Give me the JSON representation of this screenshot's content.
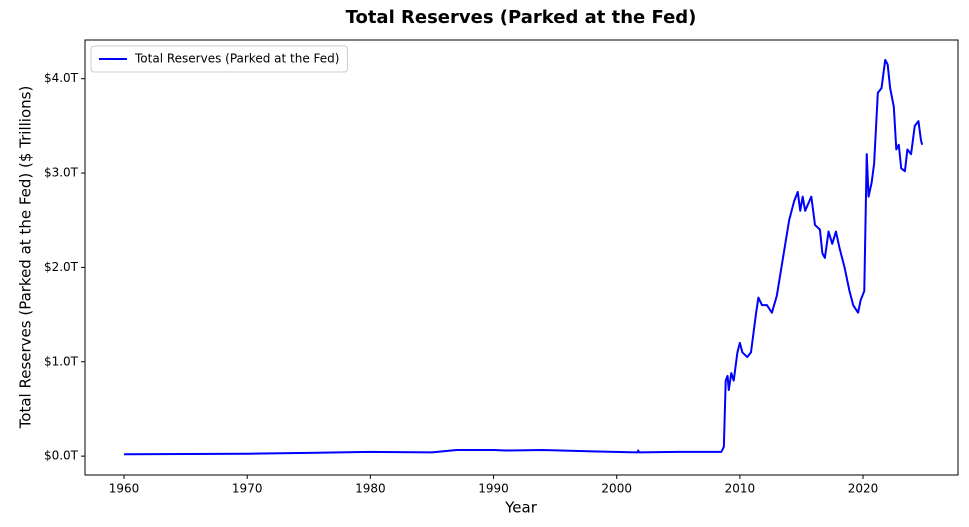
{
  "chart_data": {
    "type": "line",
    "title": "Total Reserves (Parked at the Fed)",
    "xlabel": "Year",
    "ylabel": "Total Reserves (Parked at the Fed) ($ Trillions)",
    "legend": "upper left",
    "grid": false,
    "xlim": [
      1956.83,
      2027.71
    ],
    "xticks": [
      1960,
      1970,
      1980,
      1990,
      2000,
      2010,
      2020
    ],
    "ylim": [
      -0.2,
      4.41
    ],
    "yticks": [
      {
        "value": 0,
        "label": "$0.0T"
      },
      {
        "value": 1,
        "label": "$1.0T"
      },
      {
        "value": 2,
        "label": "$2.0T"
      },
      {
        "value": 3,
        "label": "$3.0T"
      },
      {
        "value": 4,
        "label": "$4.0T"
      }
    ],
    "x": [
      1960,
      1970,
      1975,
      1980,
      1985,
      1987,
      1990,
      1991,
      1994,
      1998,
      2001.7,
      2001.75,
      2001.8,
      2005,
      2008.5,
      2008.7,
      2008.85,
      2009.0,
      2009.1,
      2009.3,
      2009.5,
      2009.8,
      2010.0,
      2010.2,
      2010.6,
      2010.9,
      2011.3,
      2011.5,
      2011.8,
      2012.2,
      2012.6,
      2013.0,
      2013.5,
      2014.0,
      2014.4,
      2014.7,
      2014.9,
      2015.1,
      2015.3,
      2015.8,
      2016.1,
      2016.5,
      2016.7,
      2016.9,
      2017.2,
      2017.5,
      2017.8,
      2018.1,
      2018.5,
      2018.9,
      2019.2,
      2019.6,
      2019.8,
      2020.1,
      2020.3,
      2020.45,
      2020.7,
      2020.9,
      2021.2,
      2021.5,
      2021.8,
      2022.0,
      2022.2,
      2022.5,
      2022.7,
      2022.9,
      2023.1,
      2023.4,
      2023.6,
      2023.9,
      2024.2,
      2024.5,
      2024.7,
      2024.8
    ],
    "series": [
      {
        "name": "Total Reserves (Parked at the Fed)",
        "color": "#0000ff",
        "values": [
          0.02,
          0.025,
          0.035,
          0.045,
          0.04,
          0.065,
          0.065,
          0.06,
          0.065,
          0.05,
          0.04,
          0.06,
          0.04,
          0.045,
          0.045,
          0.1,
          0.8,
          0.85,
          0.7,
          0.88,
          0.8,
          1.1,
          1.2,
          1.1,
          1.05,
          1.1,
          1.5,
          1.68,
          1.6,
          1.6,
          1.52,
          1.7,
          2.1,
          2.5,
          2.7,
          2.8,
          2.6,
          2.75,
          2.6,
          2.75,
          2.45,
          2.4,
          2.15,
          2.1,
          2.38,
          2.25,
          2.38,
          2.2,
          2.0,
          1.75,
          1.6,
          1.52,
          1.65,
          1.75,
          3.2,
          2.75,
          2.9,
          3.1,
          3.85,
          3.9,
          4.2,
          4.15,
          3.9,
          3.7,
          3.25,
          3.3,
          3.05,
          3.02,
          3.25,
          3.2,
          3.5,
          3.55,
          3.35,
          3.3
        ]
      }
    ]
  }
}
